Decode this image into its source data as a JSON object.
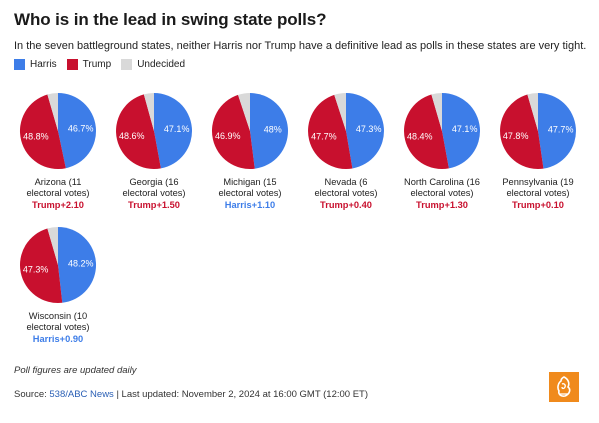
{
  "header": {
    "title": "Who is in the lead in swing state polls?",
    "subtitle": "In the seven battleground states, neither Harris nor Trump have a definitive lead as polls in these states are very tight."
  },
  "legend": [
    {
      "label": "Harris",
      "color": "#3d7de8"
    },
    {
      "label": "Trump",
      "color": "#c8102e"
    },
    {
      "label": "Undecided",
      "color": "#d9d9d9"
    }
  ],
  "colors": {
    "harris": "#3d7de8",
    "trump": "#c8102e",
    "undecided": "#d9d9d9"
  },
  "chart_data": {
    "type": "pie",
    "series_names": [
      "Harris",
      "Trump",
      "Undecided"
    ],
    "states": [
      {
        "name_line1": "Arizona (11",
        "name_line2": "electoral votes)",
        "harris": 46.7,
        "trump": 48.8,
        "harris_label": "46.7%",
        "trump_label": "48.8%",
        "lead": "Trump+2.10",
        "leader": "trump"
      },
      {
        "name_line1": "Georgia (16",
        "name_line2": "electoral votes)",
        "harris": 47.1,
        "trump": 48.6,
        "harris_label": "47.1%",
        "trump_label": "48.6%",
        "lead": "Trump+1.50",
        "leader": "trump"
      },
      {
        "name_line1": "Michigan (15",
        "name_line2": "electoral votes)",
        "harris": 48.0,
        "trump": 46.9,
        "harris_label": "48%",
        "trump_label": "46.9%",
        "lead": "Harris+1.10",
        "leader": "harris"
      },
      {
        "name_line1": "Nevada (6",
        "name_line2": "electoral votes)",
        "harris": 47.3,
        "trump": 47.7,
        "harris_label": "47.3%",
        "trump_label": "47.7%",
        "lead": "Trump+0.40",
        "leader": "trump"
      },
      {
        "name_line1": "North Carolina (16",
        "name_line2": "electoral votes)",
        "harris": 47.1,
        "trump": 48.4,
        "harris_label": "47.1%",
        "trump_label": "48.4%",
        "lead": "Trump+1.30",
        "leader": "trump"
      },
      {
        "name_line1": "Pennsylvania (19",
        "name_line2": "electoral votes)",
        "harris": 47.7,
        "trump": 47.8,
        "harris_label": "47.7%",
        "trump_label": "47.8%",
        "lead": "Trump+0.10",
        "leader": "trump"
      },
      {
        "name_line1": "Wisconsin (10",
        "name_line2": "electoral votes)",
        "harris": 48.2,
        "trump": 47.3,
        "harris_label": "48.2%",
        "trump_label": "47.3%",
        "lead": "Harris+0.90",
        "leader": "harris"
      }
    ]
  },
  "footer": {
    "note": "Poll figures are updated daily",
    "source_prefix": "Source: ",
    "source_link": "538/ABC News",
    "source_suffix": " | Last updated: November 2, 2024 at 16:00 GMT (12:00 ET)"
  },
  "logo_icon": "al-jazeera-logo-icon"
}
